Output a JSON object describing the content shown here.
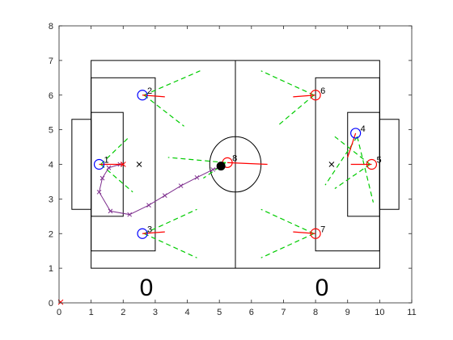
{
  "chart_data": {
    "type": "scatter",
    "title": "",
    "xlabel": "",
    "ylabel": "",
    "xlim": [
      0,
      11
    ],
    "ylim": [
      0,
      8
    ],
    "xticks": [
      "0",
      "1",
      "2",
      "3",
      "4",
      "5",
      "6",
      "7",
      "8",
      "9",
      "10",
      "11"
    ],
    "yticks": [
      "0",
      "1",
      "2",
      "3",
      "4",
      "5",
      "6",
      "7",
      "8"
    ],
    "grid": false,
    "scores": {
      "left": "0",
      "right": "0"
    },
    "colors": {
      "blue_team": "#0000ff",
      "red_team": "#ff0000",
      "vision": "#00cc00",
      "path": "#7e2f8e",
      "heading": "#ff0000",
      "ball": "#000000"
    },
    "pitch": {
      "boundary": {
        "x": [
          1,
          10
        ],
        "y": [
          1,
          7
        ]
      },
      "center_line_x": 5.5,
      "center_circle": {
        "x": 5.5,
        "y": 4,
        "r": 0.8
      },
      "left_penalty_box": {
        "x": [
          1,
          3
        ],
        "y": [
          1.5,
          6.5
        ]
      },
      "right_penalty_box": {
        "x": [
          8,
          10
        ],
        "y": [
          1.5,
          6.5
        ]
      },
      "left_goal_box": {
        "x": [
          1,
          2
        ],
        "y": [
          2.5,
          5.5
        ]
      },
      "right_goal_box": {
        "x": [
          9,
          10
        ],
        "y": [
          2.5,
          5.5
        ]
      },
      "left_goal": {
        "x": [
          0.4,
          1
        ],
        "y": [
          2.7,
          5.3
        ]
      },
      "right_goal": {
        "x": [
          10,
          10.6
        ],
        "y": [
          2.7,
          5.3
        ]
      },
      "penalty_marks": [
        {
          "x": 2.5,
          "y": 4
        },
        {
          "x": 8.5,
          "y": 4
        }
      ]
    },
    "players": [
      {
        "label": "1",
        "team": "blue",
        "x": 1.25,
        "y": 4.0,
        "heading": [
          2.0,
          4.0
        ],
        "vision": [
          [
            1.3,
            4.0,
            2.2,
            4.8
          ],
          [
            1.3,
            4.0,
            2.3,
            3.2
          ]
        ]
      },
      {
        "label": "2",
        "team": "blue",
        "x": 2.6,
        "y": 6.0,
        "heading": [
          3.3,
          5.95
        ],
        "vision": [
          [
            2.65,
            6.0,
            4.4,
            6.7
          ],
          [
            2.65,
            6.0,
            3.9,
            5.1
          ]
        ]
      },
      {
        "label": "3",
        "team": "blue",
        "x": 2.6,
        "y": 2.0,
        "heading": [
          3.3,
          2.05
        ],
        "vision": [
          [
            2.65,
            2.0,
            4.3,
            2.7
          ],
          [
            2.65,
            2.0,
            4.3,
            1.3
          ]
        ]
      },
      {
        "label": "4",
        "team": "blue",
        "x": 9.25,
        "y": 4.9,
        "heading": [
          9.0,
          4.2
        ],
        "vision": [
          [
            9.3,
            4.8,
            8.3,
            3.4
          ],
          [
            9.3,
            4.8,
            9.8,
            2.9
          ]
        ]
      },
      {
        "label": "5",
        "team": "red",
        "x": 9.75,
        "y": 4.0,
        "heading": [
          9.1,
          4.0
        ],
        "vision": [
          [
            9.7,
            4.0,
            8.6,
            3.3
          ],
          [
            9.7,
            4.0,
            8.6,
            4.8
          ]
        ]
      },
      {
        "label": "6",
        "team": "red",
        "x": 8.0,
        "y": 6.0,
        "heading": [
          7.3,
          5.95
        ],
        "vision": [
          [
            7.95,
            6.0,
            6.3,
            6.7
          ],
          [
            7.95,
            6.0,
            6.8,
            5.1
          ]
        ]
      },
      {
        "label": "7",
        "team": "red",
        "x": 8.0,
        "y": 2.0,
        "heading": [
          7.3,
          2.05
        ],
        "vision": [
          [
            7.95,
            2.0,
            6.3,
            2.7
          ],
          [
            7.95,
            2.0,
            6.3,
            1.3
          ]
        ]
      },
      {
        "label": "8",
        "team": "red",
        "x": 5.25,
        "y": 4.05,
        "heading": [
          6.5,
          4.0
        ],
        "vision": [
          [
            5.2,
            4.05,
            3.4,
            4.2
          ],
          [
            5.2,
            4.05,
            4.5,
            3.6
          ]
        ]
      }
    ],
    "ball": {
      "x": 5.05,
      "y": 3.95
    },
    "path": {
      "x": [
        5.1,
        4.8,
        4.3,
        3.8,
        3.3,
        2.8,
        2.2,
        1.6,
        1.25,
        1.35,
        1.55,
        1.9
      ],
      "y": [
        3.95,
        3.85,
        3.62,
        3.38,
        3.1,
        2.82,
        2.55,
        2.65,
        3.2,
        3.6,
        3.9,
        4.0
      ]
    },
    "x_markers": [
      {
        "x": 2.0,
        "y": 4.0,
        "color": "#ff0000"
      },
      {
        "x": 2.5,
        "y": 4.0,
        "color": "#000000"
      },
      {
        "x": 8.5,
        "y": 4.0,
        "color": "#000000"
      },
      {
        "x": 0.05,
        "y": 0.02,
        "color": "#ff0000"
      }
    ]
  }
}
